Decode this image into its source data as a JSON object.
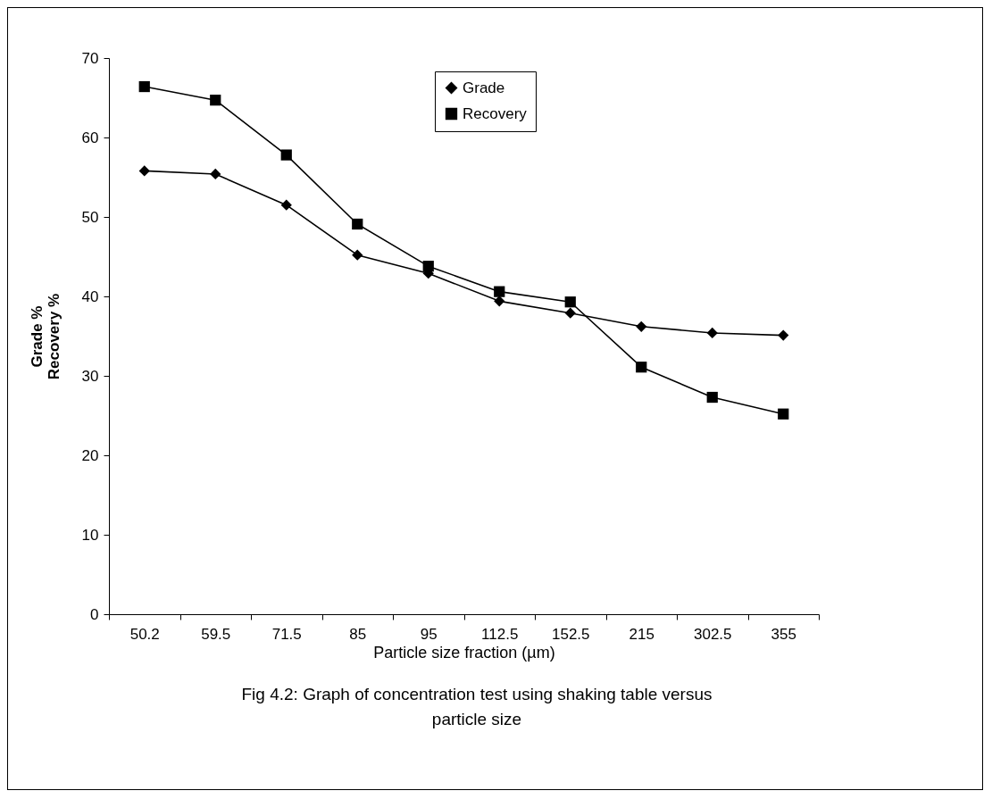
{
  "chart_data": {
    "type": "line",
    "xlabel": "Particle size fraction (µm)",
    "ylabel": "Grade %\nRecovery %",
    "annotations": [
      "Fig 4.2: Graph of concentration test using shaking table versus particle size"
    ],
    "categories": [
      "50.2",
      "59.5",
      "71.5",
      "85",
      "95",
      "112.5",
      "152.5",
      "215",
      "302.5",
      "355"
    ],
    "series": [
      {
        "name": "Grade",
        "color": "#000000",
        "marker": "diamond",
        "values": [
          55.8,
          55.4,
          51.5,
          45.2,
          42.9,
          39.4,
          37.9,
          36.2,
          35.4,
          35.1
        ]
      },
      {
        "name": "Recovery",
        "color": "#000000",
        "marker": "square",
        "values": [
          66.4,
          64.7,
          57.8,
          49.1,
          43.8,
          40.6,
          39.3,
          31.1,
          27.3,
          25.2
        ]
      }
    ],
    "ylim": [
      0,
      70
    ],
    "yticks": [
      0,
      10,
      20,
      30,
      40,
      50,
      60,
      70
    ],
    "grid": false,
    "legend": "top",
    "line_style": "solid"
  }
}
